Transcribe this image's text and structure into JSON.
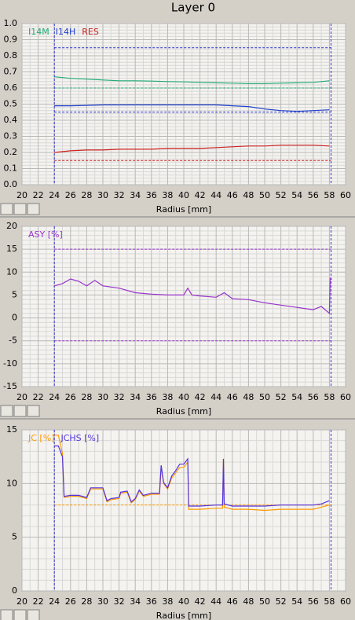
{
  "title": "Layer 0",
  "chart_data": [
    {
      "type": "line",
      "xlabel": "Radius [mm]",
      "xlim": [
        20,
        60
      ],
      "xticks": [
        20,
        22,
        24,
        26,
        28,
        30,
        32,
        34,
        36,
        38,
        40,
        42,
        44,
        46,
        48,
        50,
        52,
        54,
        56,
        58,
        60
      ],
      "ylim": [
        0,
        1
      ],
      "yticks": [
        {
          "value": 0,
          "label": "0.0"
        },
        0.1,
        0.2,
        0.3,
        0.4,
        0.5,
        0.6,
        0.7,
        0.8,
        0.9,
        {
          "value": 1,
          "label": "1.0"
        }
      ],
      "grid": true,
      "vlines": [
        24,
        58.2
      ],
      "vline_color": "#3333cc",
      "hlines": [
        {
          "value": 0.85,
          "color": "#2233cc"
        },
        {
          "value": 0.6,
          "color": "#22aa77"
        },
        {
          "value": 0.45,
          "color": "#2233cc"
        },
        {
          "value": 0.15,
          "color": "#cc2222"
        }
      ],
      "x": [
        24,
        26,
        28,
        30,
        32,
        34,
        36,
        38,
        40,
        42,
        44,
        46,
        48,
        50,
        52,
        54,
        56,
        58
      ],
      "series": [
        {
          "name": "I14M",
          "color": "#22aa77",
          "values": [
            0.67,
            0.66,
            0.655,
            0.65,
            0.645,
            0.645,
            0.643,
            0.64,
            0.638,
            0.635,
            0.632,
            0.63,
            0.628,
            0.628,
            0.63,
            0.632,
            0.635,
            0.645
          ]
        },
        {
          "name": "I14H",
          "color": "#1f3fcc",
          "values": [
            0.49,
            0.49,
            0.492,
            0.495,
            0.495,
            0.495,
            0.495,
            0.495,
            0.495,
            0.495,
            0.495,
            0.49,
            0.485,
            0.47,
            0.46,
            0.455,
            0.46,
            0.465
          ]
        },
        {
          "name": "RES",
          "color": "#cc2222",
          "values": [
            0.2,
            0.21,
            0.215,
            0.215,
            0.22,
            0.22,
            0.22,
            0.225,
            0.225,
            0.225,
            0.23,
            0.235,
            0.24,
            0.24,
            0.245,
            0.245,
            0.245,
            0.24
          ]
        }
      ]
    },
    {
      "type": "line",
      "xlabel": "Radius [mm]",
      "xlim": [
        20,
        60
      ],
      "xticks": [
        20,
        22,
        24,
        26,
        28,
        30,
        32,
        34,
        36,
        38,
        40,
        42,
        44,
        46,
        48,
        50,
        52,
        54,
        56,
        58,
        60
      ],
      "ylim": [
        -15,
        20
      ],
      "yticks": [
        -15,
        -10,
        -5,
        0,
        5,
        10,
        15,
        20
      ],
      "grid": true,
      "vlines": [
        24,
        58.2
      ],
      "vline_color": "#3333cc",
      "hlines": [
        {
          "value": 15,
          "color": "#9933cc"
        },
        {
          "value": -5,
          "color": "#9933cc"
        }
      ],
      "x": [
        24,
        25,
        26,
        27,
        28,
        29,
        30,
        32,
        34,
        36,
        38,
        40,
        40.5,
        41,
        42,
        44,
        45,
        46,
        48,
        50,
        52,
        54,
        56,
        57,
        58,
        58.1,
        58.3
      ],
      "series": [
        {
          "name": "ASY [%]",
          "color": "#9933cc",
          "values": [
            7,
            7.5,
            8.5,
            8,
            7,
            8.2,
            7,
            6.5,
            5.5,
            5.2,
            5,
            5,
            6.5,
            5,
            4.8,
            4.5,
            5.5,
            4.2,
            4,
            3.3,
            2.8,
            2.3,
            1.8,
            2.5,
            1,
            8.6,
            8.4
          ]
        }
      ]
    },
    {
      "type": "line",
      "xlabel": "Radius [mm]",
      "xlim": [
        20,
        60
      ],
      "xticks": [
        20,
        22,
        24,
        26,
        28,
        30,
        32,
        34,
        36,
        38,
        40,
        42,
        44,
        46,
        48,
        50,
        52,
        54,
        56,
        58,
        60
      ],
      "ylim": [
        0,
        15
      ],
      "yticks": [
        0,
        5,
        10,
        15
      ],
      "grid": true,
      "vlines": [
        24,
        58.2
      ],
      "vline_color": "#3333cc",
      "hlines": [
        {
          "value": 8,
          "color": "#ff9900"
        }
      ],
      "x": [
        24,
        24.5,
        25,
        25.2,
        26,
        27,
        28,
        28.5,
        29,
        30,
        30.5,
        31,
        32,
        32.2,
        33,
        33.5,
        34,
        34.5,
        35,
        36,
        37,
        37.2,
        37.5,
        38,
        38.5,
        39,
        39.5,
        40,
        40.5,
        40.6,
        42,
        44,
        44.8,
        44.9,
        45,
        46,
        48,
        50,
        52,
        54,
        56,
        57,
        58
      ],
      "series": [
        {
          "name": "JC [%]",
          "color": "#ff9900",
          "values": [
            14.5,
            14.5,
            12.8,
            8.7,
            8.8,
            8.8,
            8.6,
            9.5,
            9.5,
            9.5,
            8.3,
            8.5,
            8.6,
            9.1,
            9.2,
            8.2,
            8.5,
            9.3,
            8.8,
            9,
            9,
            11.5,
            10,
            9.5,
            10.5,
            11,
            11.5,
            11.5,
            12,
            7.6,
            7.6,
            7.7,
            7.7,
            12.2,
            7.8,
            7.6,
            7.6,
            7.5,
            7.6,
            7.6,
            7.6,
            7.8,
            8
          ]
        },
        {
          "name": "JCHS [%]",
          "color": "#5533dd",
          "values": [
            13.5,
            13.5,
            12.5,
            8.8,
            8.9,
            8.9,
            8.7,
            9.6,
            9.6,
            9.6,
            8.4,
            8.6,
            8.7,
            9.2,
            9.3,
            8.3,
            8.6,
            9.4,
            8.9,
            9.1,
            9.1,
            11.7,
            10.1,
            9.6,
            10.7,
            11.2,
            11.8,
            11.8,
            12.3,
            7.9,
            7.9,
            8,
            8,
            12.3,
            8.1,
            7.9,
            7.9,
            7.9,
            8,
            8,
            8,
            8.1,
            8.4
          ]
        }
      ]
    }
  ]
}
